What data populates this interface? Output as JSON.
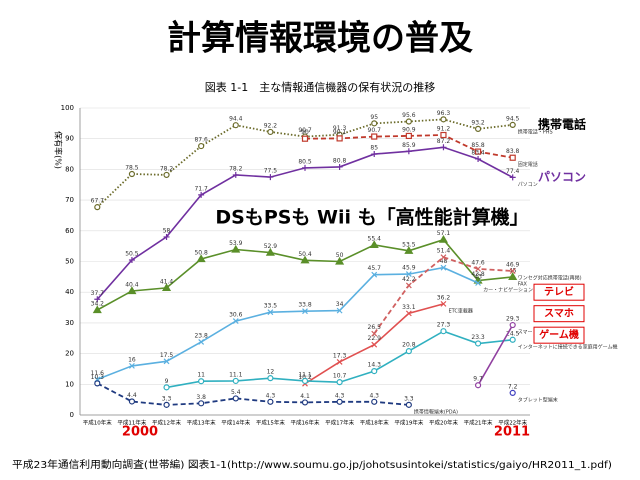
{
  "title": "計算情報環境の普及",
  "annotation": "DSもPSも Wii も「高性能計算機」",
  "year_start": "2000",
  "year_end": "2011",
  "side_labels": [
    {
      "text": "携帯電話",
      "color": "#000000",
      "boxed": false,
      "y": 94.5
    },
    {
      "text": "パソコン",
      "color": "#7030a0",
      "boxed": false,
      "y": 77.4
    },
    {
      "text": "テレビ",
      "color": "#e00000",
      "boxed": true,
      "y": 40
    },
    {
      "text": "スマホ",
      "color": "#e00000",
      "boxed": true,
      "y": 33
    },
    {
      "text": "ゲーム機",
      "color": "#e00000",
      "boxed": true,
      "y": 26
    }
  ],
  "source": "平成23年通信利用動向調査(世帯編) 図表1-1(http://www.soumu.go.jp/johotsusintokei/statistics/gaiyo/HR2011_1.pdf)",
  "chart_data": {
    "type": "line",
    "title": "図表 1-1　主な情報通信機器の保有状況の推移",
    "ylabel": "保有率(%)",
    "categories": [
      "平成10年末",
      "平成11年末",
      "平成12年末",
      "平成13年末",
      "平成14年末",
      "平成15年末",
      "平成16年末",
      "平成17年末",
      "平成18年末",
      "平成19年末",
      "平成20年末",
      "平成21年末",
      "平成22年末"
    ],
    "ylim": [
      0,
      100
    ],
    "yticks": [
      0,
      10,
      20,
      30,
      40,
      50,
      60,
      70,
      80,
      90,
      100
    ],
    "grid": true,
    "series": [
      {
        "name": "携帯電話・PHS",
        "color": "#6b6b2a",
        "style": "dotted",
        "marker": "circle",
        "values": [
          67.7,
          78.5,
          78.2,
          87.6,
          94.4,
          92.2,
          90.7,
          91.3,
          95.0,
          95.6,
          96.3,
          93.2,
          94.5
        ]
      },
      {
        "name": "固定電話",
        "color": "#c0392b",
        "style": "dashed",
        "marker": "square",
        "values": [
          null,
          null,
          null,
          null,
          null,
          null,
          90.0,
          90.1,
          90.7,
          90.9,
          91.2,
          85.8,
          83.8
        ]
      },
      {
        "name": "パソコン",
        "color": "#7030a0",
        "style": "solid",
        "marker": "cross",
        "values": [
          37.7,
          50.5,
          58.0,
          71.7,
          78.2,
          77.5,
          80.5,
          80.8,
          85.0,
          85.9,
          87.2,
          83.4,
          77.4
        ]
      },
      {
        "name": "FAX",
        "color": "#5a8f29",
        "style": "solid",
        "marker": "triangle",
        "values": [
          34.2,
          40.4,
          41.4,
          50.8,
          53.9,
          52.9,
          50.4,
          50.0,
          55.4,
          53.5,
          57.1,
          43.8,
          45.0
        ]
      },
      {
        "name": "カー・ナビゲーション・システム",
        "color": "#5bb0e0",
        "style": "solid",
        "marker": "x",
        "values": [
          11.6,
          16.0,
          17.5,
          23.8,
          30.6,
          33.5,
          33.8,
          34.0,
          45.7,
          45.9,
          48.0,
          43.0,
          null
        ]
      },
      {
        "name": "ETC車載器",
        "color": "#e05050",
        "style": "solid",
        "marker": "x",
        "values": [
          null,
          null,
          null,
          null,
          null,
          null,
          10.2,
          17.3,
          22.9,
          33.1,
          36.2,
          null,
          null
        ]
      },
      {
        "name": "ワンセグ対応携帯電話(再掲)",
        "color": "#d06060",
        "style": "dashed",
        "marker": "x",
        "values": [
          null,
          null,
          null,
          null,
          null,
          null,
          null,
          null,
          26.5,
          42.2,
          51.4,
          47.6,
          46.9
        ]
      },
      {
        "name": "インターネットに接続できる家庭用ゲーム機",
        "color": "#30b0c0",
        "style": "solid",
        "marker": "circle",
        "values": [
          null,
          null,
          9.0,
          11.0,
          11.1,
          12.0,
          11.1,
          10.7,
          14.3,
          20.8,
          27.3,
          23.3,
          24.5
        ]
      },
      {
        "name": "スマートフォン",
        "color": "#9040a0",
        "style": "solid",
        "marker": "circle",
        "values": [
          null,
          null,
          null,
          null,
          null,
          null,
          null,
          null,
          null,
          null,
          null,
          9.7,
          29.3
        ]
      },
      {
        "name": "タブレット型端末",
        "color": "#4040c0",
        "style": "solid",
        "marker": "circle",
        "values": [
          null,
          null,
          null,
          null,
          null,
          null,
          null,
          null,
          null,
          null,
          null,
          null,
          7.2
        ]
      },
      {
        "name": "携帯情報端末(PDA)",
        "color": "#1f3a80",
        "style": "dashed",
        "marker": "circle",
        "values": [
          10.3,
          4.4,
          3.3,
          3.8,
          5.4,
          4.3,
          4.1,
          4.3,
          4.3,
          3.3,
          null,
          null,
          null
        ]
      }
    ]
  }
}
